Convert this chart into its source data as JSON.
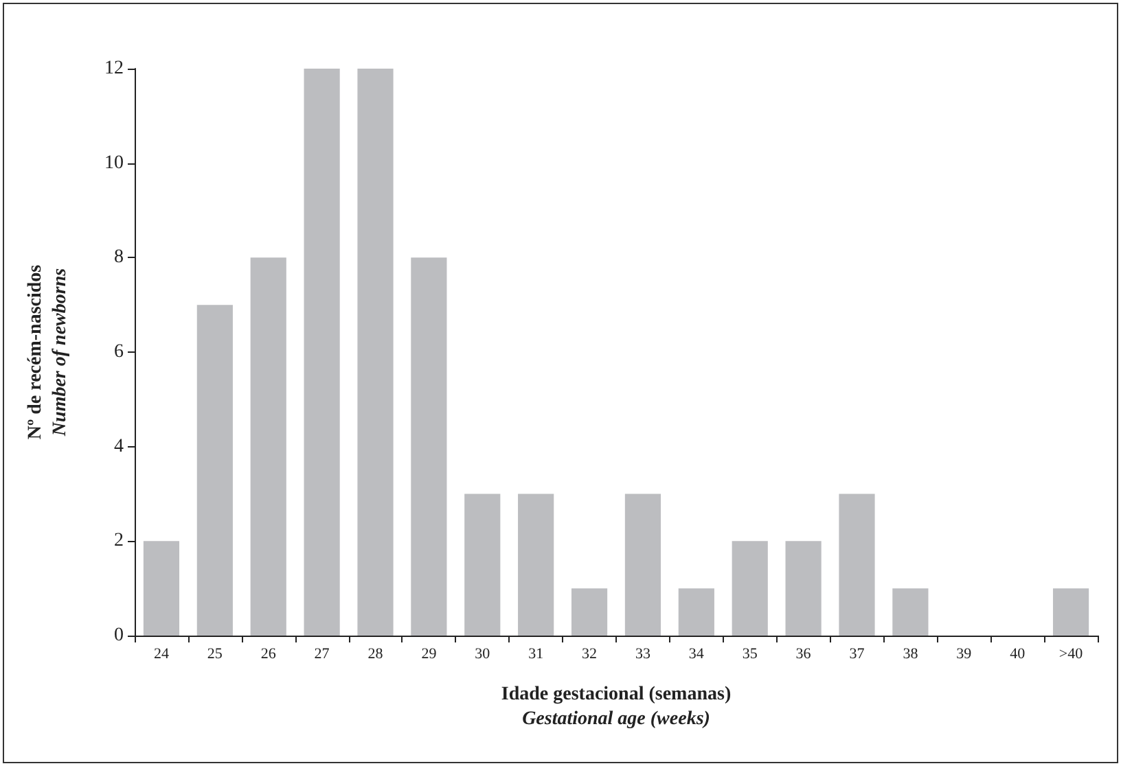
{
  "chart_data": {
    "type": "bar",
    "xlabel": "Idade gestacional (semanas)\nGestational age (weeks)",
    "ylabel": "Nº de recém-nascidos\nNumber of newborns",
    "categories": [
      "24",
      "25",
      "26",
      "27",
      "28",
      "29",
      "30",
      "31",
      "32",
      "33",
      "34",
      "35",
      "36",
      "37",
      "38",
      "39",
      "40",
      ">40"
    ],
    "values": [
      2,
      7,
      8,
      12,
      12,
      8,
      3,
      3,
      1,
      3,
      1,
      2,
      2,
      3,
      1,
      0,
      0,
      1
    ],
    "color": "#bcbdc0",
    "ylim": [
      0,
      12
    ],
    "yticks": [
      0,
      2,
      4,
      6,
      8,
      10,
      12
    ],
    "grid": false
  }
}
